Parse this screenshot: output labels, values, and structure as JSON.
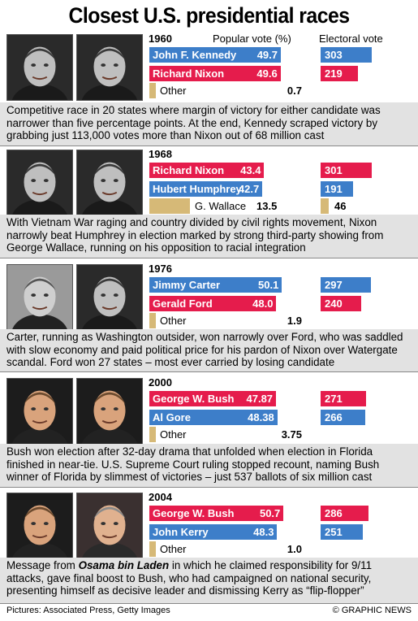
{
  "title": "Closest U.S. presidential races",
  "colors": {
    "blue": "#3d7ec9",
    "red": "#e51c4c",
    "other": "#d6b977",
    "caption_bg": "#e2e2e2"
  },
  "headers": {
    "popular": "Popular vote (%)",
    "electoral": "Electoral vote"
  },
  "footer": {
    "credit": "Pictures: Associated Press, Getty Images",
    "copyright": "© GRAPHIC NEWS"
  },
  "chart_data": [
    {
      "type": "bar",
      "year": "1960",
      "series": [
        {
          "name": "John F. Kennedy",
          "popular": 49.7,
          "popular_label": "49.7",
          "electoral": 303,
          "color": "blue"
        },
        {
          "name": "Richard Nixon",
          "popular": 49.6,
          "popular_label": "49.6",
          "electoral": 219,
          "color": "red"
        }
      ],
      "other": {
        "name": "Other",
        "popular": 0.7,
        "popular_label": "0.7"
      },
      "caption": "Competitive race in 20 states where margin of victory for either candidate was narrower than five percentage points. At the end, Kennedy scraped victory by grabbing just 113,000 votes more than Nixon out of 68 million cast"
    },
    {
      "type": "bar",
      "year": "1968",
      "series": [
        {
          "name": "Richard Nixon",
          "popular": 43.4,
          "popular_label": "43.4",
          "electoral": 301,
          "color": "red"
        },
        {
          "name": "Hubert Humphrey",
          "popular": 42.7,
          "popular_label": "42.7",
          "electoral": 191,
          "color": "blue"
        }
      ],
      "other": {
        "name": "G. Wallace",
        "popular": 13.5,
        "popular_label": "13.5",
        "electoral": 46
      },
      "caption": "With Vietnam War raging and country divided by civil rights movement, Nixon narrowly beat Humphrey in election marked by strong third-party showing from George Wallace, running on his opposition to racial integration"
    },
    {
      "type": "bar",
      "year": "1976",
      "series": [
        {
          "name": "Jimmy Carter",
          "popular": 50.1,
          "popular_label": "50.1",
          "electoral": 297,
          "color": "blue"
        },
        {
          "name": "Gerald Ford",
          "popular": 48.0,
          "popular_label": "48.0",
          "electoral": 240,
          "color": "red"
        }
      ],
      "other": {
        "name": "Other",
        "popular": 1.9,
        "popular_label": "1.9"
      },
      "caption": "Carter, running as Washington outsider, won narrowly over Ford, who was saddled with slow economy and paid political price for his pardon of Nixon over Watergate scandal. Ford won 27 states – most ever carried by losing candidate"
    },
    {
      "type": "bar",
      "year": "2000",
      "series": [
        {
          "name": "George W. Bush",
          "popular": 47.87,
          "popular_label": "47.87",
          "electoral": 271,
          "color": "red"
        },
        {
          "name": "Al Gore",
          "popular": 48.38,
          "popular_label": "48.38",
          "electoral": 266,
          "color": "blue"
        }
      ],
      "other": {
        "name": "Other",
        "popular": 3.75,
        "popular_label": "3.75"
      },
      "caption": "Bush won election after 32-day drama that unfolded when election in Florida finished in near-tie. U.S. Supreme Court ruling stopped recount, naming Bush winner of Florida by slimmest of victories – just 537 ballots of six million cast"
    },
    {
      "type": "bar",
      "year": "2004",
      "series": [
        {
          "name": "George W. Bush",
          "popular": 50.7,
          "popular_label": "50.7",
          "electoral": 286,
          "color": "red"
        },
        {
          "name": "John Kerry",
          "popular": 48.3,
          "popular_label": "48.3",
          "electoral": 251,
          "color": "blue"
        }
      ],
      "other": {
        "name": "Other",
        "popular": 1.0,
        "popular_label": "1.0"
      },
      "caption_pre": "Message from ",
      "caption_em": "Osama bin Laden",
      "caption": " in which he claimed responsibility for 9/11 attacks, gave final boost to Bush, who had campaigned on national security, presenting himself as decisive leader and dismissing Kerry as “flip-flopper”"
    }
  ]
}
